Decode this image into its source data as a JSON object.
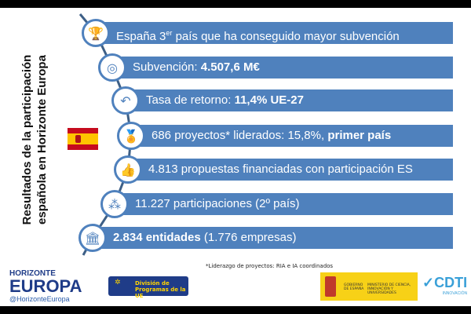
{
  "title_line1": "Resultados de la participación",
  "title_line2": "española en Horizonte Europa",
  "flag": "spain-flag",
  "items": [
    {
      "icon": "trophy-icon",
      "glyph": "🏆",
      "pre": "España 3",
      "sup": "er",
      "text": " país que ha conseguido mayor subvención",
      "bold": "",
      "post": ""
    },
    {
      "icon": "coins-icon",
      "glyph": "◎",
      "pre": "Subvención: ",
      "sup": "",
      "text": "",
      "bold": "4.507,6 M€",
      "post": ""
    },
    {
      "icon": "return-arrow-icon",
      "glyph": "↶",
      "pre": "Tasa de retorno: ",
      "sup": "",
      "text": "",
      "bold": "11,4% UE-27",
      "post": ""
    },
    {
      "icon": "medal-icon",
      "glyph": "🏅",
      "pre": "686 proyectos* liderados: 15,8%, ",
      "sup": "",
      "text": "",
      "bold": "primer país",
      "post": ""
    },
    {
      "icon": "thumbs-up-icon",
      "glyph": "👍",
      "pre": "4.813 propuestas financiadas con participación ES",
      "sup": "",
      "text": "",
      "bold": "",
      "post": ""
    },
    {
      "icon": "people-icon",
      "glyph": "⁂",
      "pre": "11.227 participaciones (2º país)",
      "sup": "",
      "text": "",
      "bold": "",
      "post": ""
    },
    {
      "icon": "institution-icon",
      "glyph": "🏛",
      "pre": "",
      "sup": "",
      "text": "",
      "bold": "2.834 entidades",
      "post": " (1.776 empresas)"
    }
  ],
  "footnote": "*Liderazgo de proyectos: RIA e IA coordinados",
  "logos": {
    "horizonte": "HORIZONTE",
    "europa": "EUROPA",
    "handle": "@HorizonteEuropa",
    "dpue_line1": "División de",
    "dpue_line2": "Programas de la UE",
    "gob": "GOBIERNO DE ESPAÑA",
    "ministerio": "MINISTERIO DE CIENCIA, INNOVACIÓN Y UNIVERSIDADES",
    "cdti": "CDTI",
    "cdti_sub": "INNOVACIÓN"
  },
  "colors": {
    "bar": "#4f81bd",
    "flag_red": "#c60b1e",
    "flag_yellow": "#ffc400"
  }
}
